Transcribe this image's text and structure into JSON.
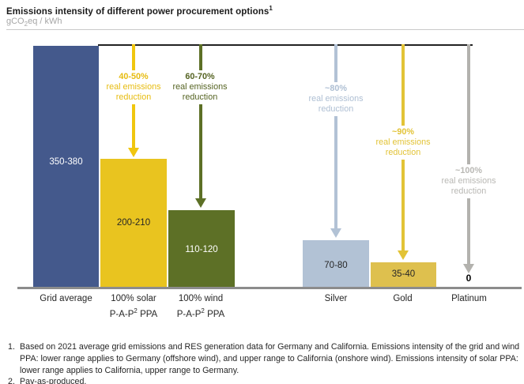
{
  "header": {
    "title": "Emissions intensity of different power procurement options",
    "title_footnote_ref": "1",
    "unit_prefix": "gCO",
    "unit_sub": "2",
    "unit_suffix": "eq / kWh"
  },
  "chart": {
    "columns": [
      {
        "key": "grid-average",
        "label_line1": "Grid average",
        "value": "350-380"
      },
      {
        "key": "solar-ppa",
        "label_line1": "100% solar",
        "label_line2_pre": "P-A-P",
        "label_line2_sup": "2",
        "label_line2_post": " PPA",
        "value": "200-210",
        "annotation_pct": "40-50%",
        "annotation_phrase": "real emissions reduction"
      },
      {
        "key": "wind-ppa",
        "label_line1": "100% wind",
        "label_line2_pre": "P-A-P",
        "label_line2_sup": "2",
        "label_line2_post": " PPA",
        "value": "110-120",
        "annotation_pct": "60-70%",
        "annotation_phrase": "real emissions reduction"
      },
      {
        "key": "silver",
        "label_line1": "Silver",
        "value": "70-80",
        "annotation_pct": "~80%",
        "annotation_phrase": "real emissions reduction"
      },
      {
        "key": "gold",
        "label_line1": "Gold",
        "value": "35-40",
        "annotation_pct": "~90%",
        "annotation_phrase": "real emissions reduction"
      },
      {
        "key": "platinum",
        "label_line1": "Platinum",
        "value": "0",
        "annotation_pct": "~100%",
        "annotation_phrase": "real emissions reduction"
      }
    ],
    "colors": {
      "grid_bar": "#44598c",
      "solar_bar": "#e9c41f",
      "wind_bar": "#5d7026",
      "silver_bar": "#b2c2d5",
      "gold_bar": "#dec04e",
      "platinum_arrow": "#b3b2ae",
      "baseline": "#8c8c8c",
      "top_reference_line": "#222222"
    }
  },
  "chart_data": {
    "type": "bar",
    "title": "Emissions intensity of different power procurement options",
    "unit": "gCO₂eq / kWh",
    "categories": [
      "Grid average",
      "100% solar P-A-P² PPA",
      "100% wind P-A-P² PPA",
      "Silver",
      "Gold",
      "Platinum"
    ],
    "value_ranges": [
      "350-380",
      "200-210",
      "110-120",
      "70-80",
      "35-40",
      "0"
    ],
    "values_mid": [
      365,
      205,
      115,
      75,
      37.5,
      0
    ],
    "reduction_labels": [
      null,
      "40-50% real emissions reduction",
      "60-70% real emissions reduction",
      "~80% real emissions reduction",
      "~90% real emissions reduction",
      "~100% real emissions reduction"
    ],
    "bar_colors": [
      "#44598c",
      "#e9c41f",
      "#5d7026",
      "#b2c2d5",
      "#dec04e",
      null
    ],
    "ylim": [
      0,
      380
    ],
    "grid": false,
    "legend": "none"
  },
  "footnotes": [
    {
      "num": "1.",
      "lines": [
        "Based on 2021 average grid emissions and RES generation data for Germany and California. Emissions intensity of the grid and wind",
        "PPA: lower range applies to Germany (offshore wind), and upper range to California (onshore wind). Emissions intensity of solar PPA:",
        "lower range applies to California, upper range to Germany."
      ]
    },
    {
      "num": "2.",
      "lines": [
        "Pay-as-produced."
      ]
    }
  ]
}
